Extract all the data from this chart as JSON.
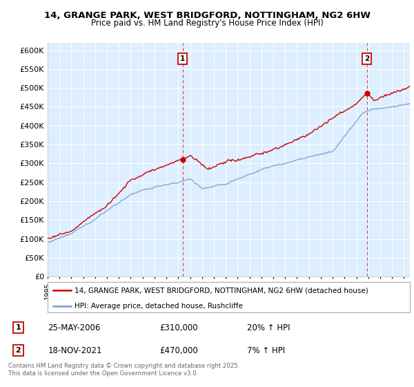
{
  "title": "14, GRANGE PARK, WEST BRIDGFORD, NOTTINGHAM, NG2 6HW",
  "subtitle": "Price paid vs. HM Land Registry's House Price Index (HPI)",
  "legend_line1": "14, GRANGE PARK, WEST BRIDGFORD, NOTTINGHAM, NG2 6HW (detached house)",
  "legend_line2": "HPI: Average price, detached house, Rushcliffe",
  "annotation1_label": "1",
  "annotation1_date": "25-MAY-2006",
  "annotation1_price": "£310,000",
  "annotation1_hpi": "20% ↑ HPI",
  "annotation2_label": "2",
  "annotation2_date": "18-NOV-2021",
  "annotation2_price": "£470,000",
  "annotation2_hpi": "7% ↑ HPI",
  "footer": "Contains HM Land Registry data © Crown copyright and database right 2025.\nThis data is licensed under the Open Government Licence v3.0.",
  "red_color": "#cc0000",
  "blue_color": "#7799cc",
  "plot_bg_color": "#ddeeff",
  "annotation_vline_color": "#dd4444",
  "grid_color": "#ffffff",
  "background_color": "#ffffff",
  "ylim": [
    0,
    620000
  ],
  "yticks": [
    0,
    50000,
    100000,
    150000,
    200000,
    250000,
    300000,
    350000,
    400000,
    450000,
    500000,
    550000,
    600000
  ],
  "year_start": 1995,
  "year_end": 2025,
  "annotation1_year": 2006.38,
  "annotation2_year": 2021.88
}
